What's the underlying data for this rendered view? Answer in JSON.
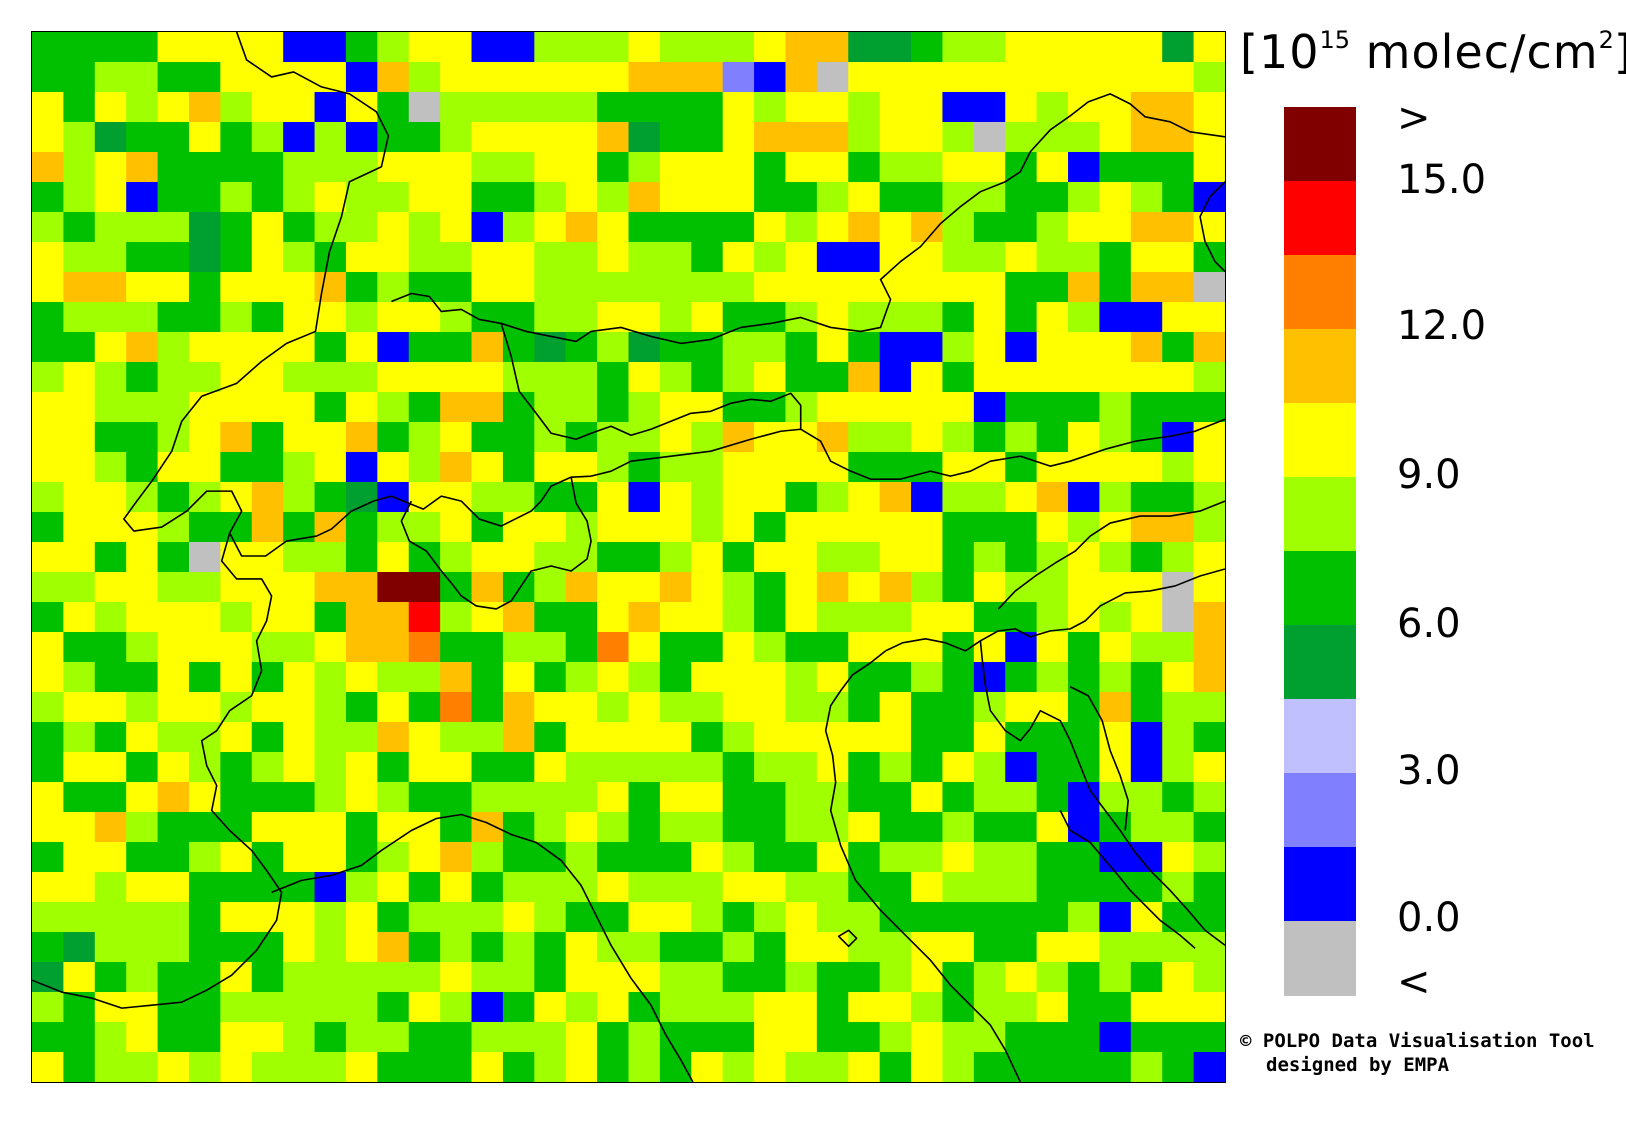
{
  "colorbar": {
    "unit_prefix": "[10",
    "unit_exponent": "15",
    "unit_suffix": " molec/cm",
    "unit_suffix_exp": "2",
    "unit_close": "]",
    "labels": [
      ">",
      "15.0",
      "12.0",
      "9.0",
      "6.0",
      "3.0",
      "0.0",
      "<"
    ],
    "colors": [
      "#800000",
      "#ff0000",
      "#ff8000",
      "#ffc000",
      "#ffff00",
      "#a0ff00",
      "#00c000",
      "#00a030",
      "#c0c0ff",
      "#8080ff",
      "#0000ff",
      "#c0c0c0"
    ]
  },
  "credit": {
    "line1": "© POLPO Data Visualisation Tool",
    "line2": "designed by EMPA"
  },
  "map": {
    "grid_cols": 38,
    "grid_rows": 35,
    "rows": [
      "66664444AA6544AA5554555433776554444474",
      "6655664444A354444443339A3B444444444445",
      "464543544A46B5555566664544544AA4544334",
      "45766465A5A6654444376643335445B5554334",
      "354366665554445544654446446554464A6664",
      "654A665654554466545344466546655665456A",
      "56555764655454A54346666454343566544334",
      "4556676456445544554556454AA44554556446",
      "4334464443656644555555544444444663633B",
      "6555665644544566554454665455564645AA44",
      "66435444464A663676576655646AA54A444363",
      "545655445554444555645654663A4644444445",
      "445554444645633655654466544444A6665666",
      "446654364436546656554534435545656456A4",
      "4456446654A453464456554444666446444454",
      "54456543567A4455664A45446543A5543A5665",
      "64445663636554644544454644444666454335",
      "44646B44556465445566546445544656545654",
      "554455444330063653443456434356455444B4",
      "645444544633154366434456455544665454B3",
      "4665444554332665562466456644464A464553",
      "456646464545536465456444546656A6565643",
      "54454454456462634454554455646654463655",
      "65645546455345536444465444446646664A56",
      "6446456545464466455555655465645A664A54",
      "466434666545665555464466556646556A5565",
      "443566644464463654565566554665664A6556",
      "6446654644654356656664566465545566AA45",
      "445446666A5464655545554455664555666656",
      "5555564445465554566445654556666665A466",
      "67555666454365656455665644554466445555",
      "74656646555554556444556656654654565645",
      "56446655555645A64546555446445655466444",
      "6654664456556655546566644665455666A666",
      "4655454555466646546564545546456666656A"
    ]
  }
}
